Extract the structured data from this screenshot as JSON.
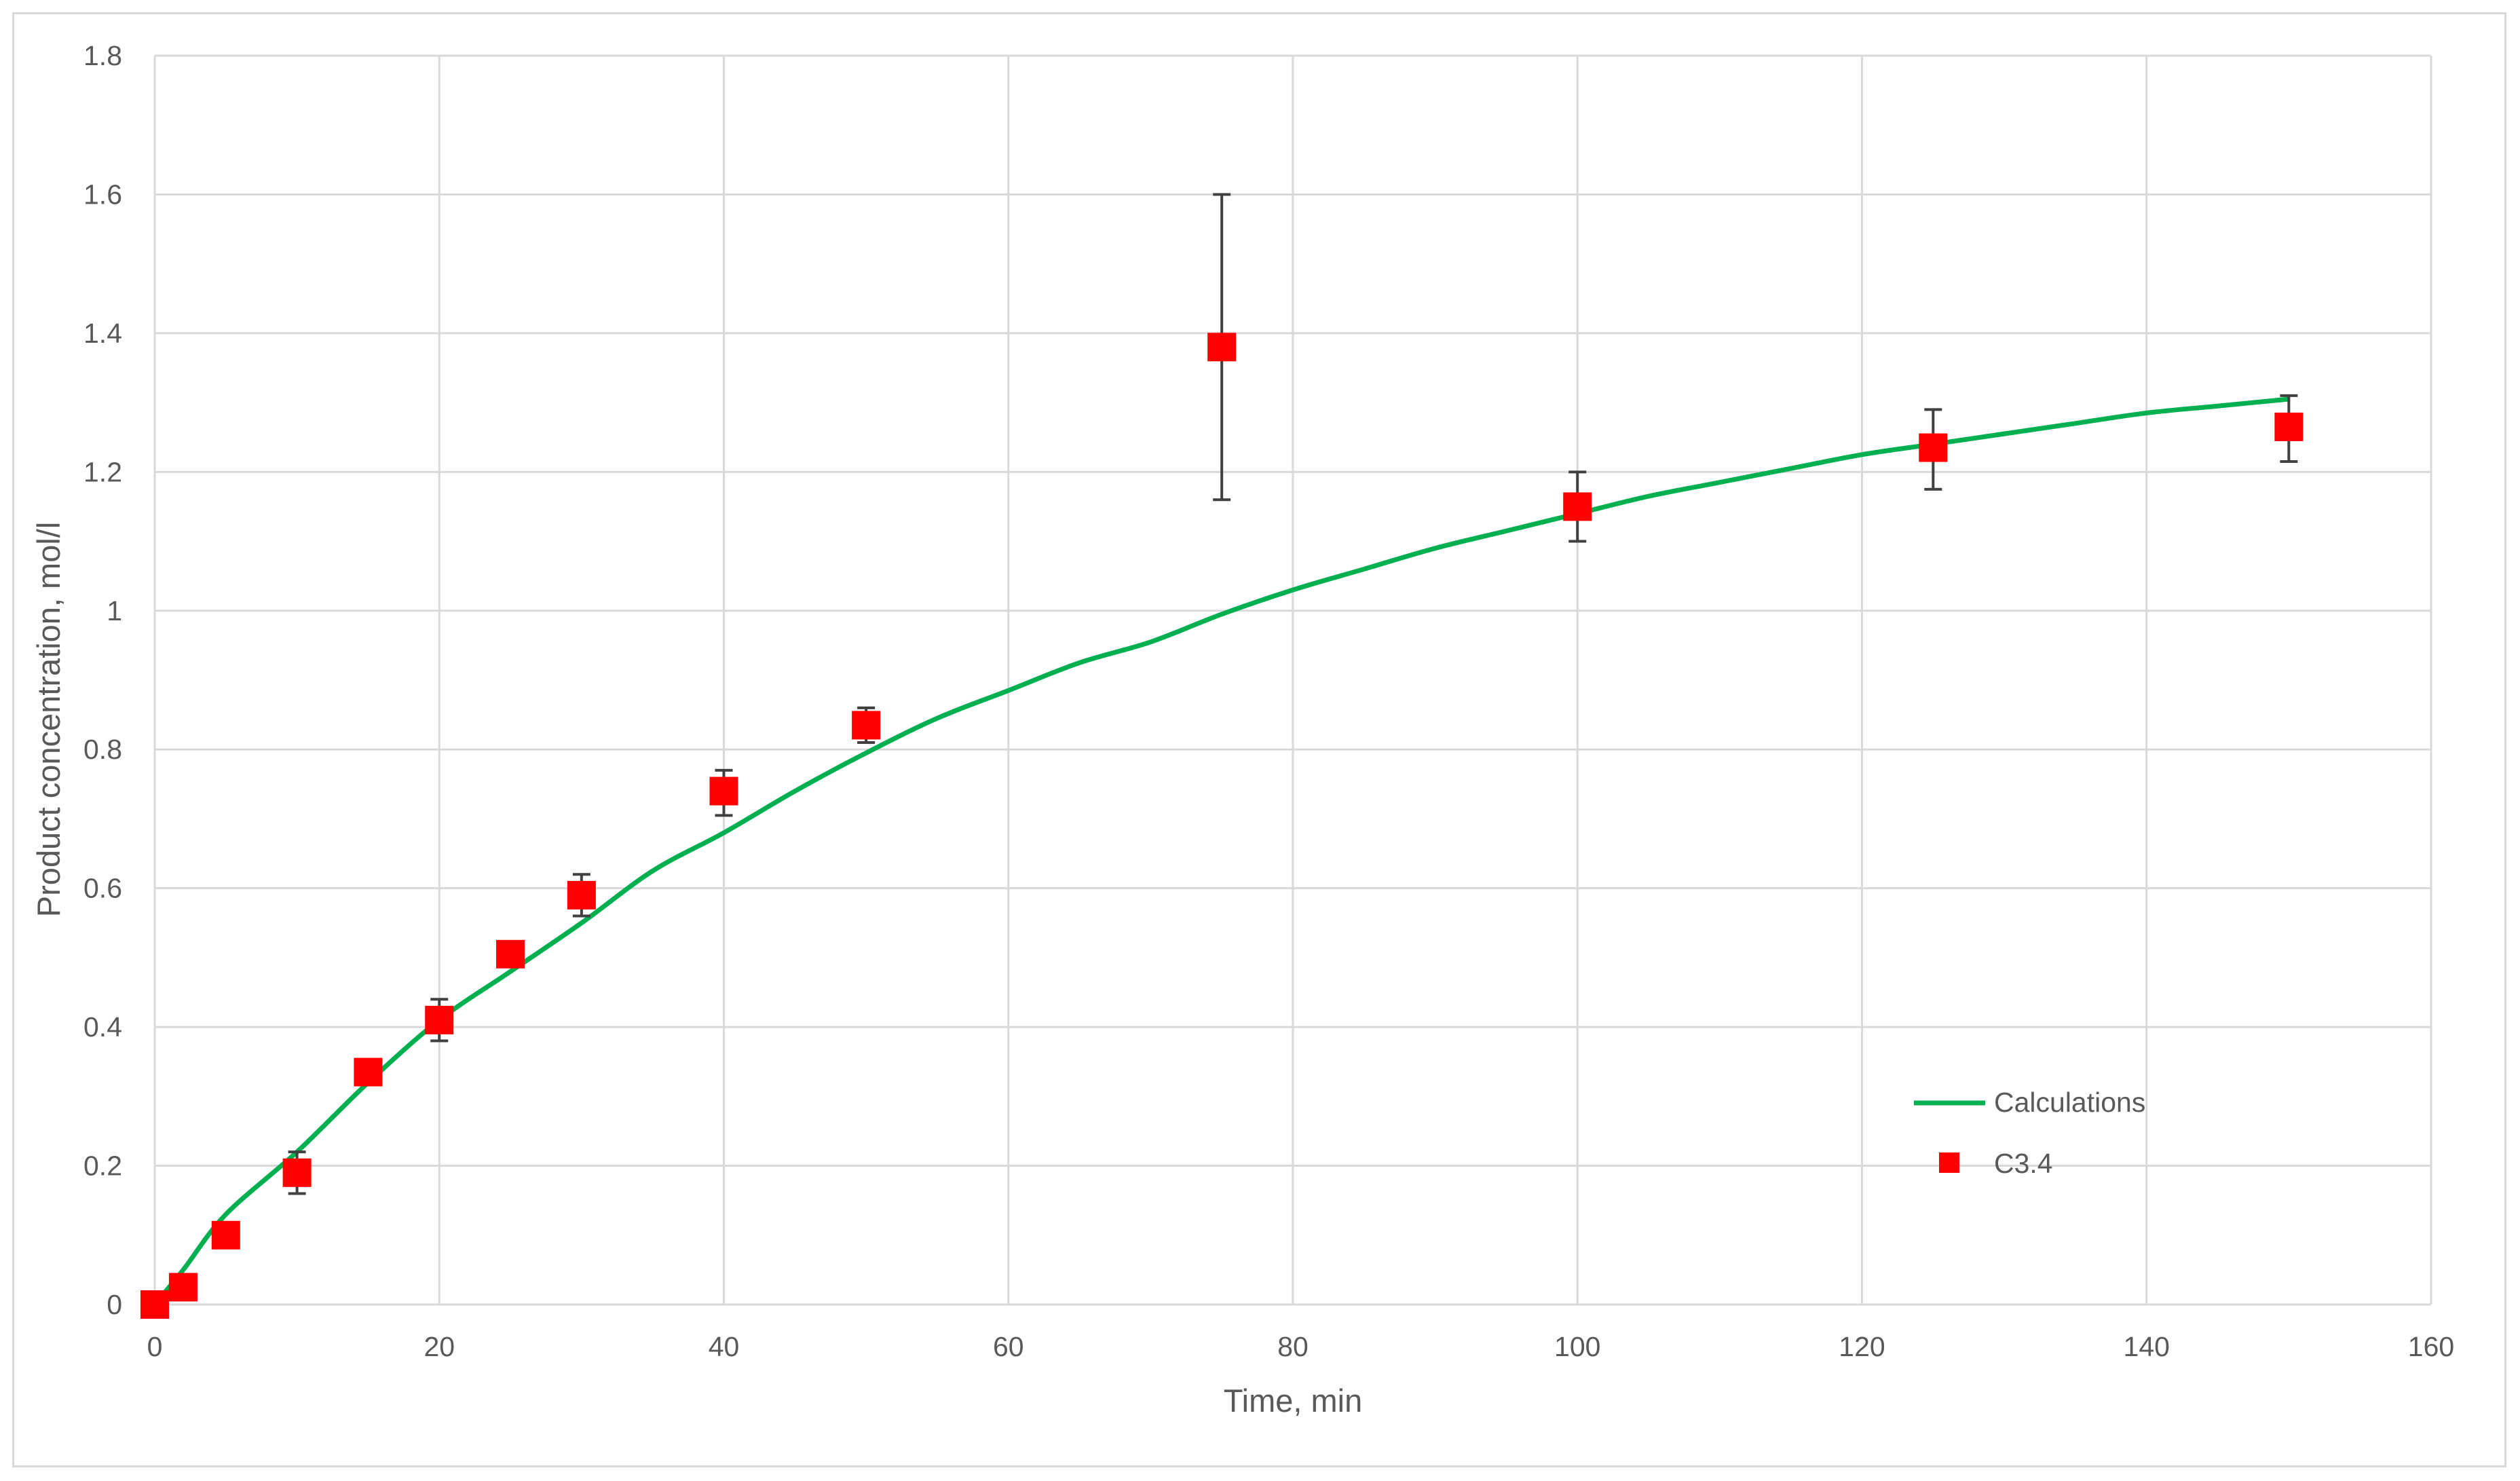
{
  "colors": {
    "calculations": "#00b050",
    "measured": "#ff0000",
    "errorbar": "#404040",
    "grid": "#d9d9d9",
    "text": "#595959"
  },
  "chart_data": {
    "type": "scatter",
    "title": "",
    "xlabel": "Time, min",
    "ylabel": "Product concentration, mol/l",
    "xlim": [
      0,
      160
    ],
    "ylim": [
      0,
      1.8
    ],
    "xticks": [
      0,
      20,
      40,
      60,
      80,
      100,
      120,
      140,
      160
    ],
    "yticks": [
      0,
      0.2,
      0.4,
      0.6,
      0.8,
      1,
      1.2,
      1.4,
      1.6,
      1.8
    ],
    "xtick_labels": [
      "0",
      "20",
      "40",
      "60",
      "80",
      "100",
      "120",
      "140",
      "160"
    ],
    "ytick_labels": [
      "0",
      "0.2",
      "0.4",
      "0.6",
      "0.8",
      "1",
      "1.2",
      "1.4",
      "1.6",
      "1.8"
    ],
    "grid": true,
    "legend_position": "bottom-right",
    "series": [
      {
        "name": "Calculations",
        "kind": "line",
        "x": [
          0,
          2,
          5,
          10,
          15,
          20,
          25,
          30,
          35,
          40,
          45,
          50,
          55,
          60,
          65,
          70,
          75,
          80,
          85,
          90,
          95,
          100,
          105,
          110,
          115,
          120,
          125,
          130,
          135,
          140,
          145,
          150
        ],
        "y": [
          0,
          0.05,
          0.13,
          0.22,
          0.32,
          0.41,
          0.48,
          0.55,
          0.625,
          0.68,
          0.74,
          0.795,
          0.845,
          0.885,
          0.925,
          0.955,
          0.995,
          1.03,
          1.06,
          1.09,
          1.115,
          1.14,
          1.165,
          1.185,
          1.205,
          1.225,
          1.24,
          1.255,
          1.27,
          1.285,
          1.295,
          1.305
        ]
      },
      {
        "name": "C3.4",
        "kind": "scatter",
        "x": [
          0,
          2,
          5,
          10,
          15,
          20,
          25,
          30,
          40,
          50,
          75,
          100,
          125,
          150
        ],
        "y": [
          0,
          0.025,
          0.1,
          0.19,
          0.335,
          0.41,
          0.505,
          0.59,
          0.74,
          0.835,
          1.38,
          1.15,
          1.235,
          1.265
        ],
        "error_low": [
          0,
          0,
          0,
          0.03,
          0,
          0.03,
          0.01,
          0.03,
          0.035,
          0.025,
          0.22,
          0.05,
          0.06,
          0.05
        ],
        "error_high": [
          0,
          0,
          0,
          0.03,
          0,
          0.03,
          0.01,
          0.03,
          0.03,
          0.025,
          0.22,
          0.05,
          0.055,
          0.045
        ]
      }
    ]
  }
}
